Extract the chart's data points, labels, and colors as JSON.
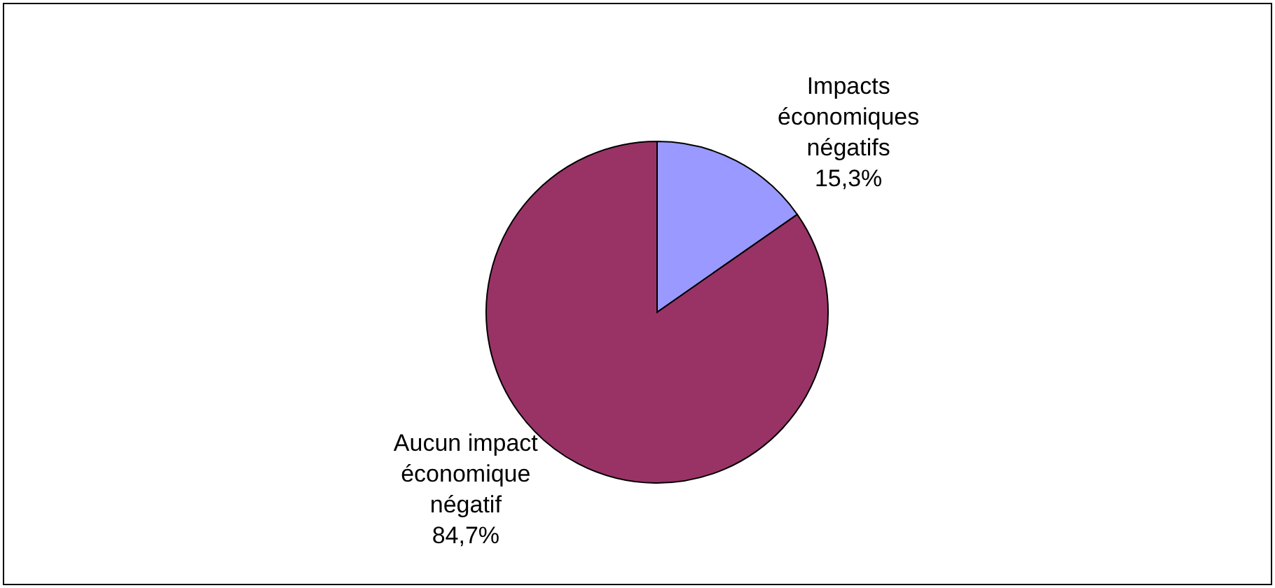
{
  "chart_data": {
    "type": "pie",
    "categories": [
      "Impacts économiques négatifs",
      "Aucun impact économique négatif"
    ],
    "values": [
      15.3,
      84.7
    ],
    "colors": [
      "#9999ff",
      "#993366"
    ],
    "value_labels": [
      "15,3%",
      "84,7%"
    ],
    "legend": false
  }
}
